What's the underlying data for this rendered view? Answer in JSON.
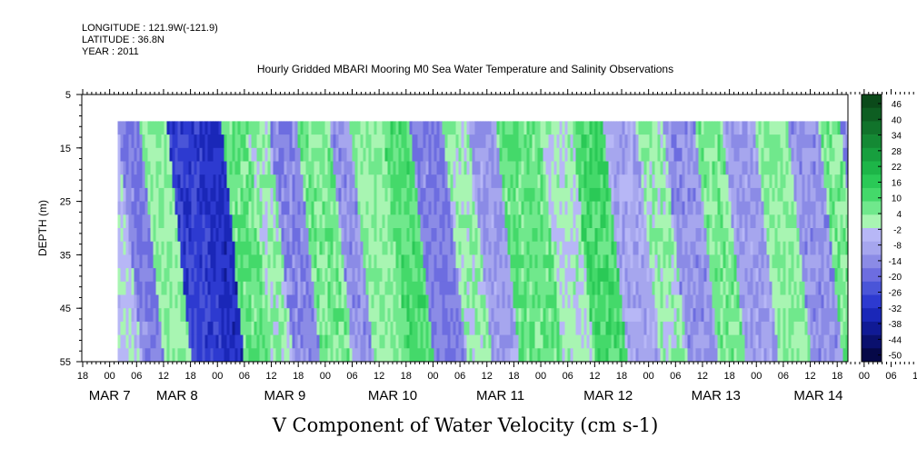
{
  "header": {
    "longitude": "LONGITUDE : 121.9W(-121.9)",
    "latitude": "LATITUDE : 36.8N",
    "year": "YEAR : 2011"
  },
  "chart_data": {
    "type": "heatmap",
    "title": "Hourly Gridded MBARI Mooring M0 Sea Water Temperature and Salinity Observations",
    "xlabel": "V Component of Water Velocity (cm s-1)",
    "ylabel": "DEPTH (m)",
    "x_start_hour": 18,
    "x_tick_step_hours": 6,
    "x_tick_labels": [
      "18",
      "00",
      "06",
      "12",
      "18",
      "00",
      "06",
      "12",
      "18",
      "00",
      "06",
      "12",
      "18",
      "00",
      "06",
      "12",
      "18",
      "00",
      "06",
      "12",
      "18",
      "00",
      "06",
      "12",
      "18",
      "00",
      "06",
      "12",
      "18",
      "00",
      "06",
      "12",
      "18"
    ],
    "date_labels": [
      {
        "text": "MAR  7",
        "tick": 1
      },
      {
        "text": "MAR  8",
        "tick": 3.5
      },
      {
        "text": "MAR  9",
        "tick": 7.5
      },
      {
        "text": "MAR 10",
        "tick": 11.5
      },
      {
        "text": "MAR 11",
        "tick": 15.5
      },
      {
        "text": "MAR 12",
        "tick": 19.5
      },
      {
        "text": "MAR 13",
        "tick": 23.5
      },
      {
        "text": "MAR 14",
        "tick": 27.3
      }
    ],
    "ylim": [
      5,
      55
    ],
    "y_ticks": [
      5,
      15,
      25,
      35,
      45,
      55
    ],
    "data_depth_range": [
      10,
      55
    ],
    "data_x_range_ticks": [
      1.3,
      28.9
    ],
    "colorbar": {
      "labels": [
        46,
        40,
        34,
        28,
        22,
        16,
        10,
        4,
        -2,
        -8,
        -14,
        -20,
        -26,
        -32,
        -38,
        -44,
        -50
      ],
      "colors": [
        "#0b4a1a",
        "#0e5e22",
        "#11732b",
        "#148934",
        "#179f3e",
        "#1db548",
        "#2ac956",
        "#44d96a",
        "#70e88c",
        "#a8f5b2",
        "#b7b7f6",
        "#a6a6ee",
        "#8b8be6",
        "#6d6de0",
        "#4a55d8",
        "#2d3ad0",
        "#1a27b8",
        "#101a95",
        "#0a106e",
        "#060848"
      ]
    },
    "bands": [
      {
        "start": 1.3,
        "end": 2.1,
        "value": -14
      },
      {
        "start": 2.1,
        "end": 3.1,
        "value": 6
      },
      {
        "start": 3.1,
        "end": 4.3,
        "value": -26
      },
      {
        "start": 4.3,
        "end": 5.1,
        "value": -30
      },
      {
        "start": 5.1,
        "end": 6.1,
        "value": 10
      },
      {
        "start": 6.1,
        "end": 6.9,
        "value": 4
      },
      {
        "start": 6.9,
        "end": 7.9,
        "value": -12
      },
      {
        "start": 7.9,
        "end": 9.1,
        "value": 8
      },
      {
        "start": 9.1,
        "end": 9.9,
        "value": -10
      },
      {
        "start": 9.9,
        "end": 11.1,
        "value": 6
      },
      {
        "start": 11.1,
        "end": 12.1,
        "value": 12
      },
      {
        "start": 12.1,
        "end": 13.3,
        "value": -14
      },
      {
        "start": 13.3,
        "end": 14.3,
        "value": 4
      },
      {
        "start": 14.3,
        "end": 15.3,
        "value": -8
      },
      {
        "start": 15.3,
        "end": 16.9,
        "value": 10
      },
      {
        "start": 16.9,
        "end": 18.1,
        "value": 2
      },
      {
        "start": 18.1,
        "end": 19.3,
        "value": 14
      },
      {
        "start": 19.3,
        "end": 20.5,
        "value": -6
      },
      {
        "start": 20.5,
        "end": 21.5,
        "value": 4
      },
      {
        "start": 21.5,
        "end": 22.7,
        "value": -10
      },
      {
        "start": 22.7,
        "end": 23.7,
        "value": 8
      },
      {
        "start": 23.7,
        "end": 24.9,
        "value": -8
      },
      {
        "start": 24.9,
        "end": 26.1,
        "value": 6
      },
      {
        "start": 26.1,
        "end": 27.3,
        "value": -10
      },
      {
        "start": 27.3,
        "end": 28.1,
        "value": 8
      },
      {
        "start": 28.1,
        "end": 28.9,
        "value": -12
      }
    ]
  }
}
